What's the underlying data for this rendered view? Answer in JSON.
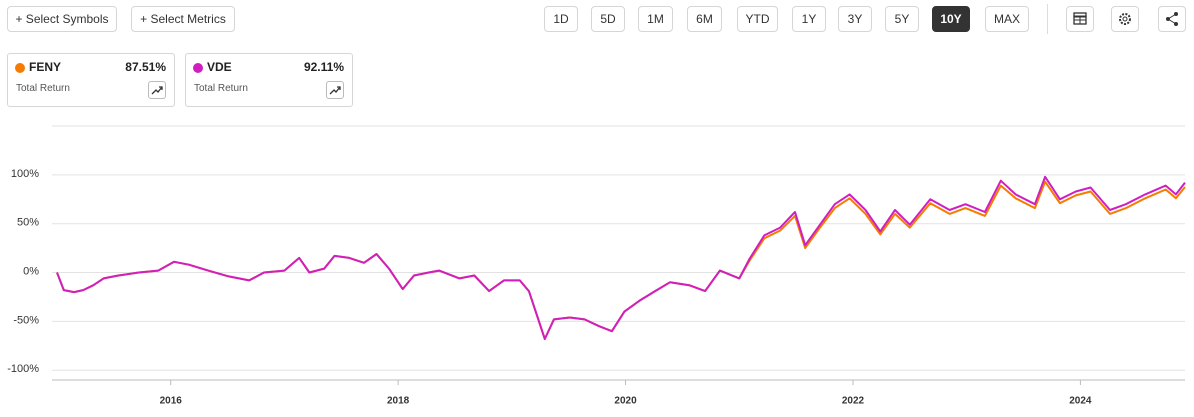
{
  "ui": {
    "buttons": [
      "+ Select Symbols",
      "+ Select Metrics"
    ],
    "periods": [
      "1D",
      "5D",
      "1M",
      "6M",
      "YTD",
      "1Y",
      "3Y",
      "5Y",
      "10Y",
      "MAX"
    ],
    "active_period": 8
  },
  "chart_data": {
    "type": "line",
    "x": [
      2015.0,
      2015.06,
      2015.15,
      2015.23,
      2015.32,
      2015.41,
      2015.54,
      2015.72,
      2015.89,
      2016.03,
      2016.16,
      2016.33,
      2016.51,
      2016.69,
      2016.82,
      2017.0,
      2017.13,
      2017.22,
      2017.35,
      2017.44,
      2017.57,
      2017.7,
      2017.81,
      2017.92,
      2018.04,
      2018.14,
      2018.27,
      2018.36,
      2018.54,
      2018.67,
      2018.8,
      2018.93,
      2019.07,
      2019.15,
      2019.29,
      2019.37,
      2019.51,
      2019.64,
      2019.77,
      2019.88,
      2019.99,
      2020.12,
      2020.26,
      2020.39,
      2020.56,
      2020.7,
      2020.83,
      2021.0,
      2021.09,
      2021.22,
      2021.36,
      2021.49,
      2021.58,
      2021.71,
      2021.84,
      2021.97,
      2022.11,
      2022.24,
      2022.37,
      2022.5,
      2022.68,
      2022.85,
      2022.99,
      2023.16,
      2023.3,
      2023.43,
      2023.6,
      2023.69,
      2023.82,
      2023.96,
      2024.09,
      2024.26,
      2024.4,
      2024.57,
      2024.75,
      2024.84,
      2024.92
    ],
    "series": [
      {
        "name": "FENY",
        "color": "#f57c00",
        "return_label": "87.51%",
        "metric": "Total Return",
        "values": [
          0,
          -18,
          -20,
          -18,
          -13,
          -6,
          -3,
          0,
          2,
          11,
          8,
          2,
          -4,
          -8,
          0,
          2,
          15,
          0,
          4,
          17,
          15,
          10,
          19,
          4,
          -17,
          -3,
          0,
          2,
          -6,
          -3,
          -19,
          -8,
          -8,
          -19,
          -68,
          -48,
          -46,
          -48,
          -55,
          -60,
          -40,
          -29,
          -19,
          -10,
          -13,
          -19,
          2,
          -6,
          12,
          35,
          43,
          58,
          25,
          46,
          66,
          76,
          60,
          39,
          60,
          46,
          71,
          60,
          66,
          58,
          89,
          76,
          66,
          93,
          71,
          79,
          83,
          60,
          66,
          76,
          85,
          76,
          87.51
        ]
      },
      {
        "name": "VDE",
        "color": "#d01fc0",
        "return_label": "92.11%",
        "metric": "Total Return",
        "values": [
          0,
          -18,
          -20,
          -18,
          -13,
          -6,
          -3,
          0,
          2,
          11,
          8,
          2,
          -4,
          -8,
          0,
          2,
          15,
          0,
          4,
          17,
          15,
          10,
          19,
          4,
          -17,
          -3,
          0,
          2,
          -6,
          -3,
          -19,
          -8,
          -8,
          -19,
          -68,
          -48,
          -46,
          -48,
          -55,
          -60,
          -40,
          -29,
          -19,
          -10,
          -13,
          -19,
          2,
          -6,
          14,
          38,
          46,
          62,
          28,
          49,
          70,
          80,
          64,
          42,
          64,
          49,
          75,
          64,
          70,
          62,
          94,
          80,
          70,
          98,
          75,
          83,
          87,
          64,
          70,
          80,
          89,
          80,
          92.11
        ]
      }
    ],
    "xlim": [
      2015.0,
      2024.92
    ],
    "xticks": [
      2016,
      2018,
      2020,
      2022,
      2024
    ],
    "ylim": [
      -110,
      150
    ],
    "yticks": [
      {
        "value": 100,
        "label": "100%"
      },
      {
        "value": 50,
        "label": "50%"
      },
      {
        "value": 0,
        "label": "0%"
      },
      {
        "value": -50,
        "label": "-50%"
      },
      {
        "value": -100,
        "label": "-100%"
      }
    ],
    "grid": true
  }
}
